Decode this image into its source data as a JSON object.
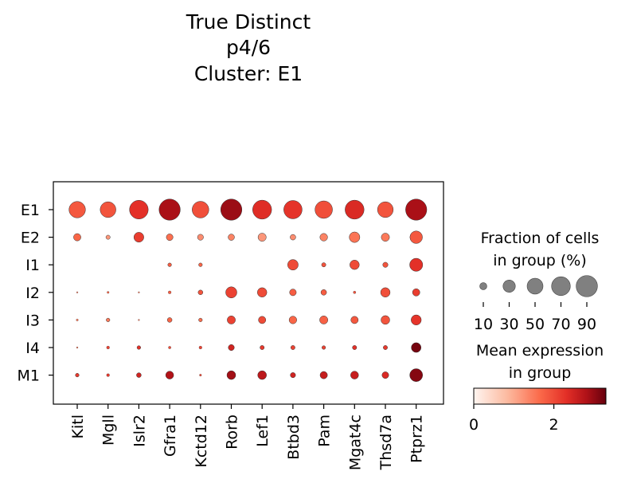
{
  "chart_data": {
    "type": "dotplot",
    "title_lines": [
      "True Distinct",
      "p4/6",
      "Cluster: E1"
    ],
    "genes": [
      "Kitl",
      "Mgll",
      "Islr2",
      "Gfra1",
      "Kctd12",
      "Rorb",
      "Lef1",
      "Btbd3",
      "Pam",
      "Mgat4c",
      "Thsd7a",
      "Ptprz1"
    ],
    "groups": [
      "E1",
      "E2",
      "I1",
      "I2",
      "I3",
      "I4",
      "M1"
    ],
    "fraction_pct": [
      [
        60,
        55,
        78,
        100,
        62,
        100,
        80,
        75,
        68,
        80,
        55,
        100
      ],
      [
        12,
        4,
        22,
        10,
        8,
        9,
        15,
        7,
        13,
        25,
        15,
        35
      ],
      [
        0,
        0,
        0,
        3,
        3,
        0,
        0,
        25,
        4,
        20,
        6,
        38
      ],
      [
        0.5,
        1,
        0.5,
        2,
        5,
        28,
        20,
        10,
        7,
        1.5,
        20,
        12
      ],
      [
        1,
        3,
        0.5,
        5,
        3,
        15,
        12,
        13,
        15,
        12,
        17,
        23
      ],
      [
        0.5,
        2,
        3,
        1.5,
        2,
        8,
        4,
        4,
        3,
        4,
        4,
        21
      ],
      [
        3,
        2,
        5,
        14,
        1,
        17,
        17,
        6,
        12,
        14,
        10,
        37
      ]
    ],
    "mean_expression": [
      [
        1.85,
        1.9,
        2.3,
        2.85,
        1.95,
        2.95,
        2.35,
        2.25,
        1.95,
        2.4,
        1.9,
        2.85
      ],
      [
        1.7,
        1.2,
        2.15,
        1.6,
        1.3,
        1.4,
        1.2,
        1.3,
        1.4,
        1.55,
        1.5,
        1.85
      ],
      [
        0,
        0,
        0,
        1.8,
        1.7,
        0,
        0,
        2.0,
        1.9,
        2.0,
        1.9,
        2.3
      ],
      [
        1.5,
        1.7,
        1.5,
        1.8,
        1.9,
        2.1,
        2.0,
        1.8,
        1.8,
        1.9,
        1.95,
        2.15
      ],
      [
        1.5,
        1.5,
        1.5,
        1.7,
        1.6,
        2.1,
        2.0,
        1.7,
        1.75,
        1.85,
        1.9,
        2.25
      ],
      [
        1.7,
        2.1,
        2.3,
        2.0,
        2.1,
        2.5,
        2.2,
        2.1,
        2.1,
        2.3,
        2.2,
        3.2
      ],
      [
        2.2,
        2.2,
        2.5,
        2.8,
        2.0,
        2.9,
        2.7,
        2.5,
        2.6,
        2.6,
        2.4,
        3.1
      ]
    ],
    "size_legend": {
      "title_lines": [
        "Fraction of cells",
        "in group (%)"
      ],
      "values": [
        10,
        30,
        50,
        70,
        90
      ],
      "labels": [
        "10",
        "30",
        "50",
        "70",
        "90"
      ]
    },
    "color_legend": {
      "title_lines": [
        "Mean expression",
        "in group"
      ],
      "range": [
        0,
        3.3
      ],
      "ticks": [
        0,
        2
      ],
      "tick_labels": [
        "0",
        "2"
      ],
      "colormap": "Reds"
    },
    "grid": false,
    "legend_position": "right"
  }
}
